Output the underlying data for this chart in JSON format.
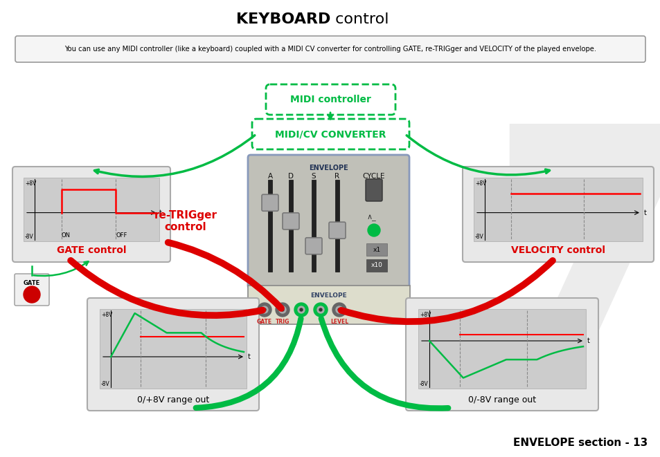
{
  "title": "KEYBOARD control",
  "info_text": "You can use any MIDI controller (like a keyboard) coupled with a MIDI CV converter for controlling GATE, re-TRIGger and VELOCITY of the played envelope.",
  "midi_controller_label": "MIDI controller",
  "midi_cv_label": "MIDI/CV CONVERTER",
  "gate_control_label": "GATE control",
  "velocity_control_label": "VELOCITY control",
  "retrigger_label": "re-TRIGger\ncontrol",
  "bottom_left_label": "0/+8V range out",
  "bottom_right_label": "0/-8V range out",
  "footer": "ENVELOPE section - 13",
  "green_color": "#00bb44",
  "red_color": "#dd0000",
  "box_bg": "#e8e8e8",
  "plot_bg": "#cccccc",
  "module_bg": "#c0c0b8",
  "panel_bg": "#d8d8d0"
}
